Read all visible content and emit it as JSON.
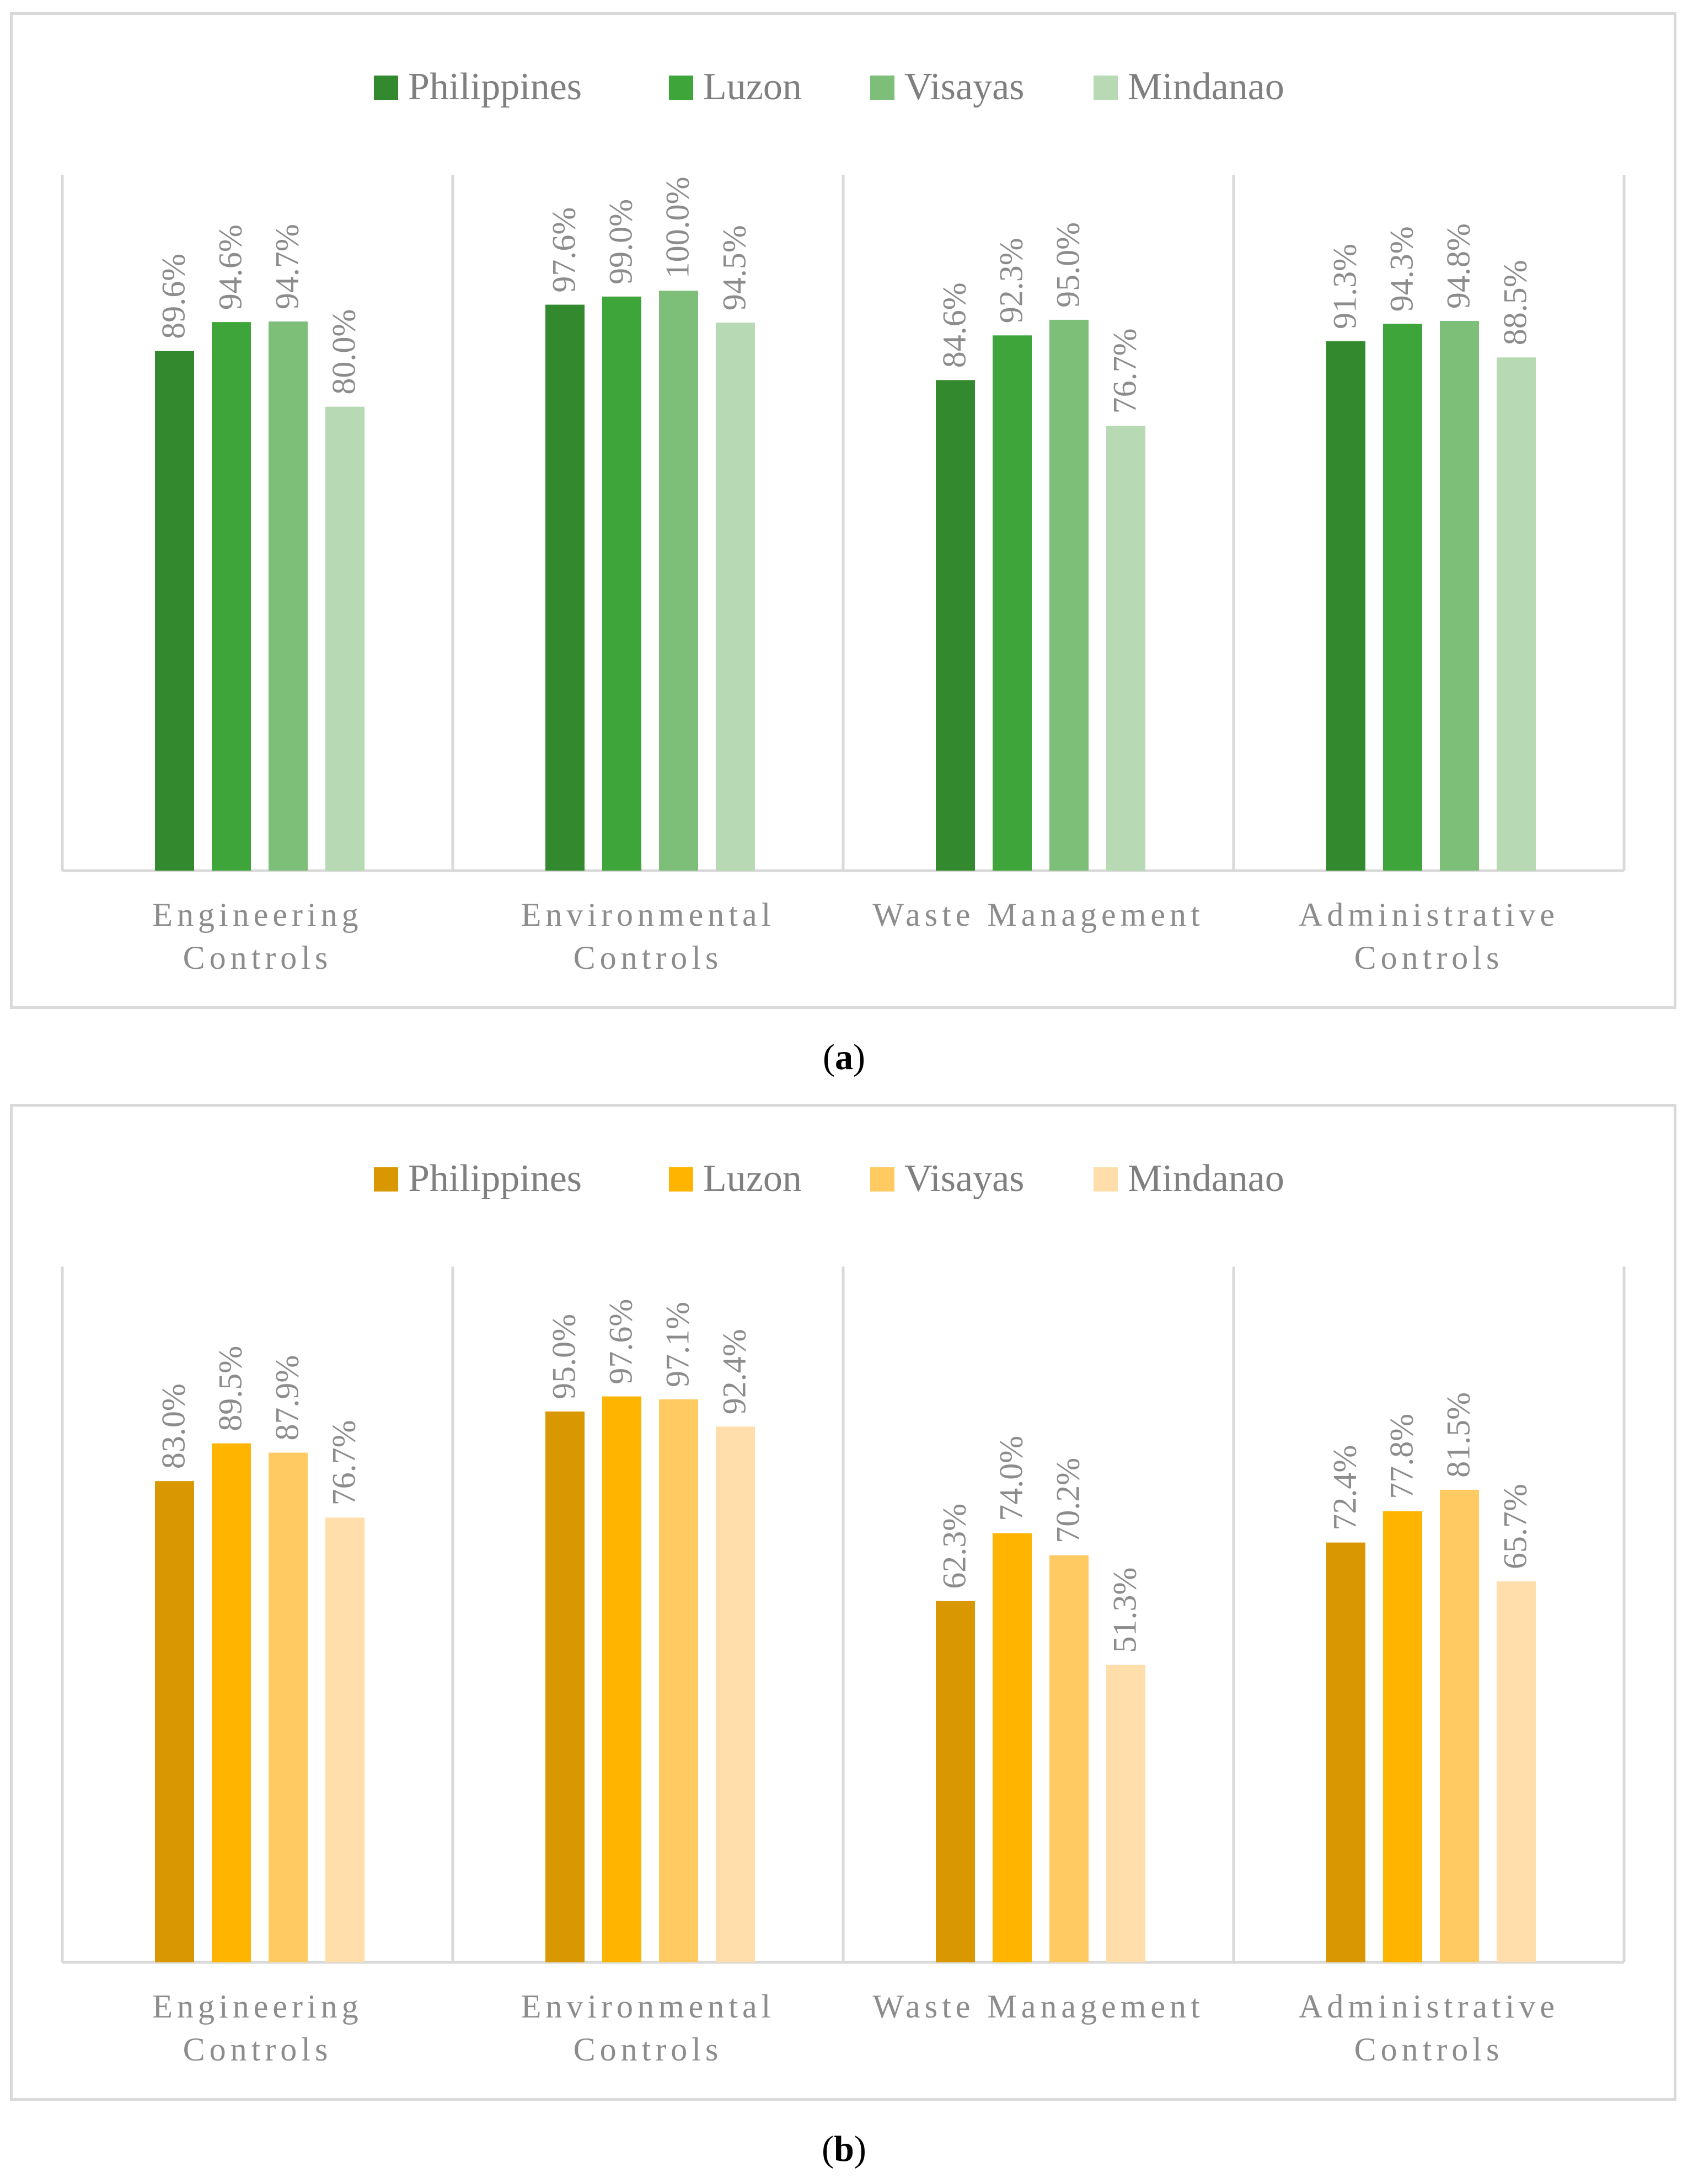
{
  "chart_data": [
    {
      "type": "bar",
      "panel_label": "a",
      "categories": [
        [
          "Engineering",
          "Controls"
        ],
        [
          "Environmental",
          "Controls"
        ],
        [
          "Waste Management"
        ],
        [
          "Administrative",
          "Controls"
        ]
      ],
      "series": [
        {
          "name": "Philippines",
          "color": "#33892e",
          "values": [
            89.6,
            97.6,
            84.6,
            91.3
          ],
          "labels": [
            "89.6%",
            "97.6%",
            "84.6%",
            "91.3%"
          ]
        },
        {
          "name": "Luzon",
          "color": "#3ea53a",
          "values": [
            94.6,
            99.0,
            92.3,
            94.3
          ],
          "labels": [
            "94.6%",
            "99.0%",
            "92.3%",
            "94.3%"
          ]
        },
        {
          "name": "Visayas",
          "color": "#7dbf78",
          "values": [
            94.7,
            100.0,
            95.0,
            94.8
          ],
          "labels": [
            "94.7%",
            "100.0%",
            "95.0%",
            "94.8%"
          ]
        },
        {
          "name": "Mindanao",
          "color": "#b7d9b4",
          "values": [
            80.0,
            94.5,
            76.7,
            88.5
          ],
          "labels": [
            "80.0%",
            "94.5%",
            "76.7%",
            "88.5%"
          ]
        }
      ],
      "ylim": [
        0,
        120
      ],
      "legend": "top",
      "grid": false
    },
    {
      "type": "bar",
      "panel_label": "b",
      "categories": [
        [
          "Engineering",
          "Controls"
        ],
        [
          "Environmental",
          "Controls"
        ],
        [
          "Waste Management"
        ],
        [
          "Administrative",
          "Controls"
        ]
      ],
      "series": [
        {
          "name": "Philippines",
          "color": "#d99802",
          "values": [
            83.0,
            95.0,
            62.3,
            72.4
          ],
          "labels": [
            "83.0%",
            "95.0%",
            "62.3%",
            "72.4%"
          ]
        },
        {
          "name": "Luzon",
          "color": "#ffb400",
          "values": [
            89.5,
            97.6,
            74.0,
            77.8
          ],
          "labels": [
            "89.5%",
            "97.6%",
            "74.0%",
            "77.8%"
          ]
        },
        {
          "name": "Visayas",
          "color": "#ffca62",
          "values": [
            87.9,
            97.1,
            70.2,
            81.5
          ],
          "labels": [
            "87.9%",
            "97.1%",
            "70.2%",
            "81.5%"
          ]
        },
        {
          "name": "Mindanao",
          "color": "#ffdeac",
          "values": [
            76.7,
            92.4,
            51.3,
            65.7
          ],
          "labels": [
            "76.7%",
            "92.4%",
            "51.3%",
            "65.7%"
          ]
        }
      ],
      "ylim": [
        0,
        120
      ],
      "legend": "top",
      "grid": false
    }
  ],
  "colors": {
    "axis": "#d9d9d9",
    "label_text": "#8c8c8c",
    "legend_text": "#7f7f7f"
  }
}
